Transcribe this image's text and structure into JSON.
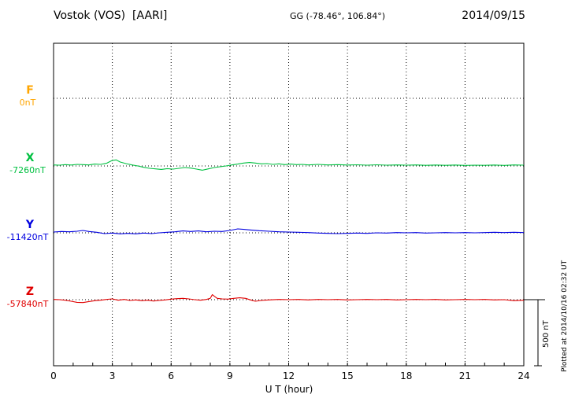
{
  "header": {
    "station_title": "Vostok (VOS)  [AARI]",
    "gg_coords": "GG (-78.46°, 106.84°)",
    "date": "2014/09/15"
  },
  "side_note": "Plotted at 2014/10/16 02:32 UT",
  "chart_data": {
    "type": "line",
    "title": "Vostok (VOS) [AARI] magnetogram for 2014/09/15",
    "xlabel": "U T (hour)",
    "x_range": [
      0,
      24
    ],
    "x_ticks": [
      0,
      3,
      6,
      9,
      12,
      15,
      18,
      21,
      24
    ],
    "grid": "dotted vertical gridlines every 3 hours, dotted horizontal baseline per component",
    "legend_position": "left baseline labels",
    "scale_bar": {
      "label": "500 nT",
      "nT": 500
    },
    "units": "nT offset from component baseline",
    "series": [
      {
        "name": "F",
        "baseline_label": "0nT",
        "baseline_nT": 0,
        "color": "#FFA500",
        "points": []
      },
      {
        "name": "X",
        "baseline_label": "-7260nT",
        "baseline_nT": -7260,
        "color": "#00C040",
        "points": [
          [
            0,
            8
          ],
          [
            0.3,
            6
          ],
          [
            0.6,
            10
          ],
          [
            0.9,
            7
          ],
          [
            1.2,
            12
          ],
          [
            1.5,
            10
          ],
          [
            1.8,
            8
          ],
          [
            2.1,
            14
          ],
          [
            2.4,
            12
          ],
          [
            2.7,
            20
          ],
          [
            3.0,
            42
          ],
          [
            3.2,
            46
          ],
          [
            3.4,
            30
          ],
          [
            3.7,
            18
          ],
          [
            4.0,
            8
          ],
          [
            4.3,
            0
          ],
          [
            4.6,
            -10
          ],
          [
            4.9,
            -18
          ],
          [
            5.2,
            -22
          ],
          [
            5.5,
            -26
          ],
          [
            5.8,
            -20
          ],
          [
            6.1,
            -24
          ],
          [
            6.4,
            -18
          ],
          [
            6.7,
            -12
          ],
          [
            7.0,
            -16
          ],
          [
            7.3,
            -24
          ],
          [
            7.6,
            -32
          ],
          [
            7.9,
            -22
          ],
          [
            8.2,
            -12
          ],
          [
            8.5,
            -6
          ],
          [
            8.8,
            0
          ],
          [
            9.1,
            8
          ],
          [
            9.4,
            14
          ],
          [
            9.7,
            22
          ],
          [
            10.0,
            26
          ],
          [
            10.3,
            22
          ],
          [
            10.6,
            16
          ],
          [
            10.9,
            18
          ],
          [
            11.2,
            12
          ],
          [
            11.5,
            16
          ],
          [
            11.8,
            10
          ],
          [
            12.1,
            14
          ],
          [
            12.4,
            10
          ],
          [
            12.7,
            12
          ],
          [
            13.0,
            8
          ],
          [
            13.5,
            12
          ],
          [
            14.0,
            8
          ],
          [
            14.5,
            10
          ],
          [
            15.0,
            7
          ],
          [
            15.5,
            9
          ],
          [
            16.0,
            6
          ],
          [
            16.5,
            9
          ],
          [
            17.0,
            6
          ],
          [
            17.5,
            8
          ],
          [
            18.0,
            6
          ],
          [
            18.5,
            8
          ],
          [
            19.0,
            5
          ],
          [
            19.5,
            7
          ],
          [
            20.0,
            5
          ],
          [
            20.5,
            7
          ],
          [
            21.0,
            4
          ],
          [
            21.5,
            6
          ],
          [
            22.0,
            5
          ],
          [
            22.5,
            7
          ],
          [
            23.0,
            4
          ],
          [
            23.5,
            8
          ],
          [
            24.0,
            6
          ]
        ]
      },
      {
        "name": "Y",
        "baseline_label": "-11420nT",
        "baseline_nT": -11420,
        "color": "#0000E0",
        "points": [
          [
            0,
            6
          ],
          [
            0.4,
            10
          ],
          [
            0.8,
            8
          ],
          [
            1.2,
            12
          ],
          [
            1.5,
            18
          ],
          [
            1.8,
            10
          ],
          [
            2.2,
            4
          ],
          [
            2.6,
            -6
          ],
          [
            3.0,
            -2
          ],
          [
            3.4,
            -8
          ],
          [
            3.8,
            -4
          ],
          [
            4.2,
            -8
          ],
          [
            4.6,
            -2
          ],
          [
            5.0,
            -6
          ],
          [
            5.4,
            0
          ],
          [
            5.8,
            4
          ],
          [
            6.2,
            8
          ],
          [
            6.6,
            14
          ],
          [
            7.0,
            10
          ],
          [
            7.4,
            14
          ],
          [
            7.8,
            8
          ],
          [
            8.2,
            12
          ],
          [
            8.6,
            10
          ],
          [
            9.0,
            18
          ],
          [
            9.4,
            30
          ],
          [
            9.7,
            26
          ],
          [
            10.0,
            22
          ],
          [
            10.5,
            16
          ],
          [
            11.0,
            12
          ],
          [
            11.5,
            8
          ],
          [
            12.0,
            6
          ],
          [
            12.5,
            4
          ],
          [
            13.0,
            2
          ],
          [
            13.5,
            -2
          ],
          [
            14.0,
            -4
          ],
          [
            14.5,
            -6
          ],
          [
            15.0,
            -4
          ],
          [
            15.5,
            -2
          ],
          [
            16.0,
            -4
          ],
          [
            16.5,
            0
          ],
          [
            17.0,
            -2
          ],
          [
            17.5,
            2
          ],
          [
            18.0,
            0
          ],
          [
            18.5,
            2
          ],
          [
            19.0,
            -2
          ],
          [
            19.5,
            0
          ],
          [
            20.0,
            2
          ],
          [
            20.5,
            0
          ],
          [
            21.0,
            2
          ],
          [
            21.5,
            0
          ],
          [
            22.0,
            2
          ],
          [
            22.5,
            4
          ],
          [
            23.0,
            2
          ],
          [
            23.5,
            4
          ],
          [
            24.0,
            2
          ]
        ]
      },
      {
        "name": "Z",
        "baseline_label": "-57840nT",
        "baseline_nT": -57840,
        "color": "#E00000",
        "points": [
          [
            0,
            2
          ],
          [
            0.3,
            0
          ],
          [
            0.6,
            -4
          ],
          [
            0.9,
            -12
          ],
          [
            1.2,
            -20
          ],
          [
            1.5,
            -22
          ],
          [
            1.8,
            -14
          ],
          [
            2.1,
            -8
          ],
          [
            2.4,
            -4
          ],
          [
            2.7,
            2
          ],
          [
            3.0,
            6
          ],
          [
            3.3,
            -4
          ],
          [
            3.6,
            2
          ],
          [
            3.9,
            -6
          ],
          [
            4.2,
            -2
          ],
          [
            4.5,
            -8
          ],
          [
            4.8,
            -4
          ],
          [
            5.1,
            -10
          ],
          [
            5.4,
            -6
          ],
          [
            5.7,
            -2
          ],
          [
            6.0,
            4
          ],
          [
            6.3,
            8
          ],
          [
            6.6,
            10
          ],
          [
            6.9,
            6
          ],
          [
            7.2,
            0
          ],
          [
            7.5,
            -4
          ],
          [
            7.8,
            2
          ],
          [
            8.0,
            10
          ],
          [
            8.1,
            38
          ],
          [
            8.2,
            26
          ],
          [
            8.35,
            10
          ],
          [
            8.6,
            6
          ],
          [
            8.9,
            4
          ],
          [
            9.2,
            10
          ],
          [
            9.5,
            14
          ],
          [
            9.8,
            10
          ],
          [
            10.1,
            -4
          ],
          [
            10.3,
            -12
          ],
          [
            10.6,
            -6
          ],
          [
            11.0,
            -2
          ],
          [
            11.5,
            2
          ],
          [
            12.0,
            0
          ],
          [
            12.5,
            2
          ],
          [
            13.0,
            -2
          ],
          [
            13.5,
            2
          ],
          [
            14.0,
            0
          ],
          [
            14.5,
            2
          ],
          [
            15.0,
            -2
          ],
          [
            15.5,
            0
          ],
          [
            16.0,
            2
          ],
          [
            16.5,
            0
          ],
          [
            17.0,
            2
          ],
          [
            17.5,
            -2
          ],
          [
            18.0,
            0
          ],
          [
            18.5,
            2
          ],
          [
            19.0,
            0
          ],
          [
            19.5,
            2
          ],
          [
            20.0,
            -2
          ],
          [
            20.5,
            0
          ],
          [
            21.0,
            2
          ],
          [
            21.5,
            0
          ],
          [
            22.0,
            2
          ],
          [
            22.5,
            -2
          ],
          [
            23.0,
            0
          ],
          [
            23.5,
            -8
          ],
          [
            24.0,
            -4
          ]
        ]
      }
    ]
  }
}
